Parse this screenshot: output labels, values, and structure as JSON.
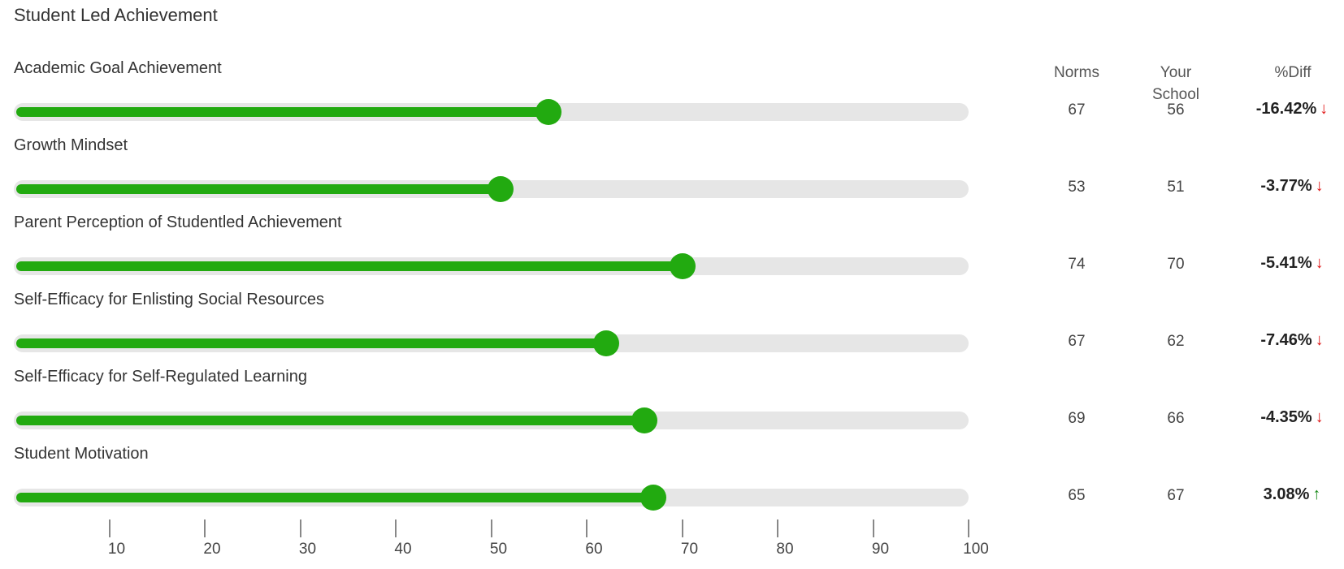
{
  "title": "Student Led Achievement",
  "columns": {
    "norms": "Norms",
    "your_school": "Your\nSchool",
    "diff": "%Diff"
  },
  "colors": {
    "bar_fill": "#22aa10",
    "track": "#e6e6e6",
    "down_arrow": "#e01818",
    "up_arrow": "#1a8a1a"
  },
  "axis": {
    "min": 0,
    "max": 100,
    "ticks": [
      "10",
      "20",
      "30",
      "40",
      "50",
      "60",
      "70",
      "80",
      "90",
      "100"
    ]
  },
  "rows": [
    {
      "label": "Academic Goal Achievement",
      "norms": "67",
      "school": "56",
      "school_value": 56,
      "diff": "-16.42%",
      "trend": "down",
      "arrow_icon": "down-arrow-icon"
    },
    {
      "label": "Growth Mindset",
      "norms": "53",
      "school": "51",
      "school_value": 51,
      "diff": "-3.77%",
      "trend": "down",
      "arrow_icon": "down-arrow-icon"
    },
    {
      "label": "Parent Perception of Studentled Achievement",
      "norms": "74",
      "school": "70",
      "school_value": 70,
      "diff": "-5.41%",
      "trend": "down",
      "arrow_icon": "down-arrow-icon"
    },
    {
      "label": "Self-Efficacy for Enlisting Social Resources",
      "norms": "67",
      "school": "62",
      "school_value": 62,
      "diff": "-7.46%",
      "trend": "down",
      "arrow_icon": "down-arrow-icon"
    },
    {
      "label": "Self-Efficacy for Self-Regulated Learning",
      "norms": "69",
      "school": "66",
      "school_value": 66,
      "diff": "-4.35%",
      "trend": "down",
      "arrow_icon": "down-arrow-icon"
    },
    {
      "label": "Student Motivation",
      "norms": "65",
      "school": "67",
      "school_value": 67,
      "diff": "3.08%",
      "trend": "up",
      "arrow_icon": "up-arrow-icon"
    }
  ]
}
